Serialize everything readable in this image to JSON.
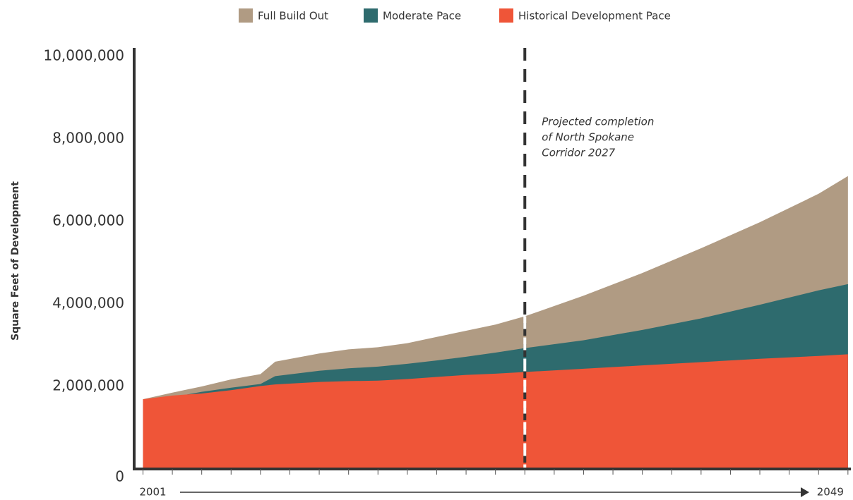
{
  "chart_data": {
    "type": "area",
    "y_label": "Square Feet of Development",
    "x": [
      2001,
      2003,
      2005,
      2007,
      2009,
      2010,
      2013,
      2015,
      2017,
      2019,
      2021,
      2023,
      2025,
      2027,
      2031,
      2035,
      2039,
      2043,
      2047,
      2049
    ],
    "series": [
      {
        "name": "Full Build Out",
        "color": "#b09b83",
        "values": [
          1690000,
          1850000,
          2000000,
          2170000,
          2300000,
          2600000,
          2800000,
          2900000,
          2950000,
          3050000,
          3200000,
          3350000,
          3500000,
          3700000,
          4200000,
          4750000,
          5350000,
          5980000,
          6670000,
          7100000
        ]
      },
      {
        "name": "Moderate Pace",
        "color": "#2e6b6e",
        "values": [
          1690000,
          1740000,
          1870000,
          1970000,
          2060000,
          2250000,
          2380000,
          2440000,
          2480000,
          2550000,
          2630000,
          2720000,
          2820000,
          2930000,
          3120000,
          3370000,
          3650000,
          3980000,
          4330000,
          4480000
        ]
      },
      {
        "name": "Historical Development Pace",
        "color": "#ef5538",
        "values": [
          1690000,
          1780000,
          1830000,
          1910000,
          2010000,
          2050000,
          2110000,
          2130000,
          2140000,
          2180000,
          2230000,
          2280000,
          2310000,
          2350000,
          2430000,
          2510000,
          2590000,
          2670000,
          2740000,
          2780000
        ]
      }
    ],
    "xlim": [
      2000.4,
      2049.2
    ],
    "xticks": [
      2001,
      2049
    ],
    "xminorticks": [
      2003,
      2005,
      2007,
      2009,
      2011,
      2013,
      2015,
      2017,
      2019,
      2021,
      2023,
      2025,
      2027,
      2029,
      2031,
      2033,
      2035,
      2037,
      2039,
      2041,
      2043,
      2045,
      2047
    ],
    "ylim": [
      0,
      10000000
    ],
    "yticks": [
      0,
      {
        "value": 2000000,
        "label": "2,000,000"
      },
      {
        "value": 4000000,
        "label": "4,000,000"
      },
      {
        "value": 6000000,
        "label": "6,000,000"
      },
      {
        "value": 8000000,
        "label": "8,000,000"
      },
      {
        "value": 10000000,
        "label": "10,000,000"
      }
    ],
    "legend": "top",
    "annotation": {
      "x": 2027,
      "lines": [
        "Projected completion",
        "of North Spokane",
        "Corridor 2027"
      ]
    }
  }
}
